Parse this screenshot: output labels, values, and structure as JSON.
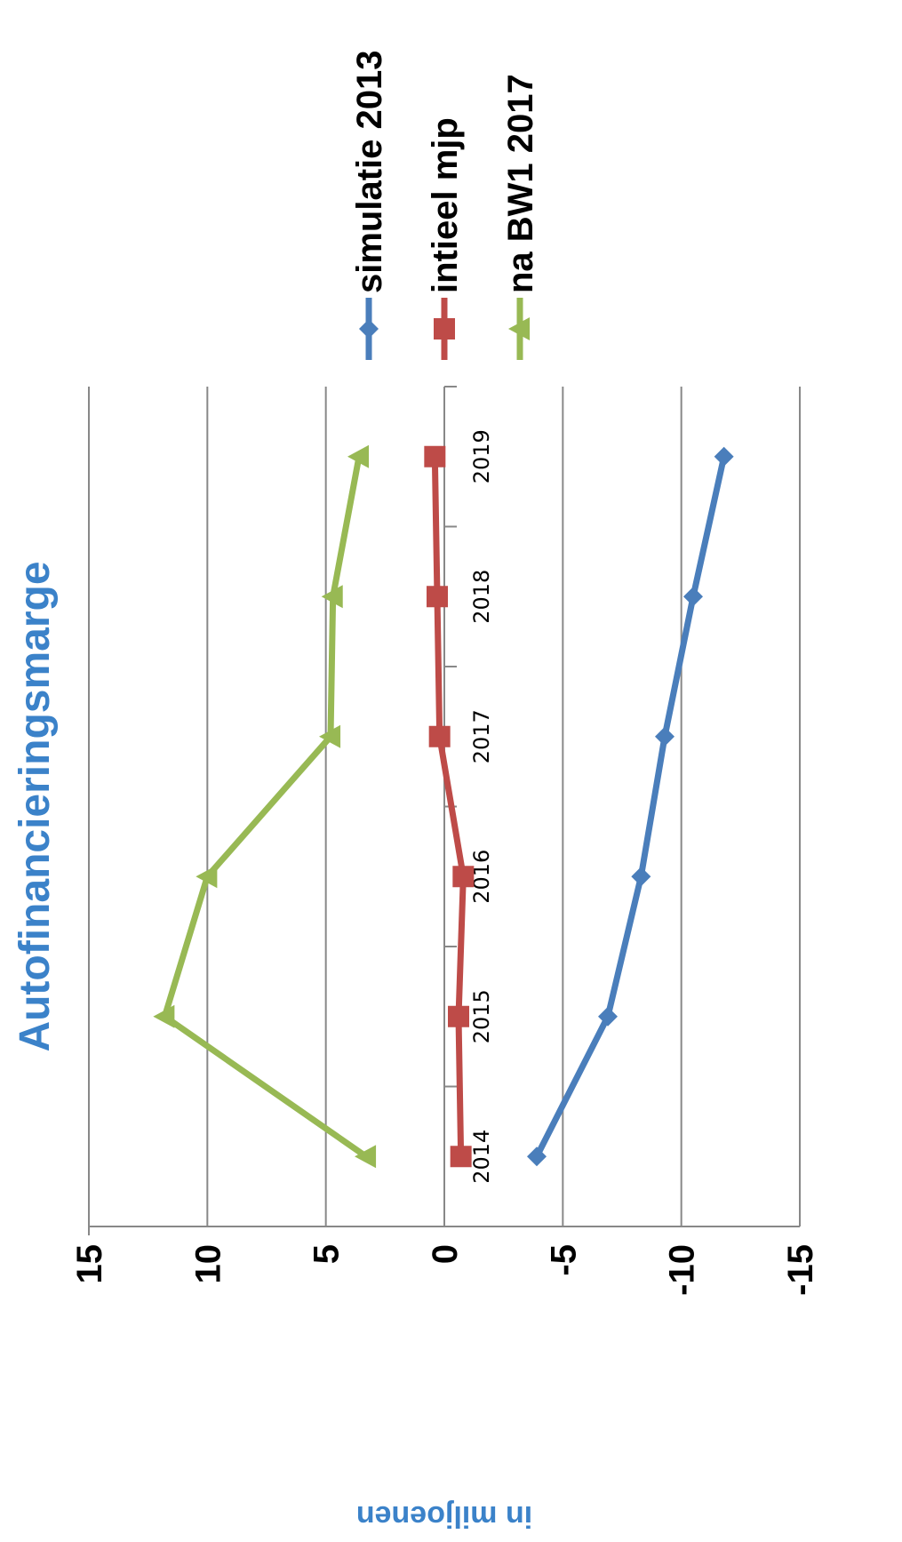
{
  "chart_data": {
    "type": "line",
    "title": "Autofinancieringsmarge",
    "ylabel": "in miljoenen",
    "xlabel": "",
    "categories": [
      "2014",
      "2015",
      "2016",
      "2017",
      "2018",
      "2019"
    ],
    "ylim": [
      -15,
      15
    ],
    "yticks": [
      "15",
      "10",
      "5",
      "0",
      "-5",
      "-10",
      "-15"
    ],
    "grid": true,
    "legend_position": "right",
    "series": [
      {
        "name": "simulatie  2013",
        "color": "#4a7ebb",
        "marker": "diamond",
        "values": [
          -3.9,
          -6.9,
          -8.3,
          -9.3,
          -10.5,
          -11.8
        ]
      },
      {
        "name": "intieel mjp",
        "color": "#be4b48",
        "marker": "square",
        "values": [
          -0.7,
          -0.6,
          -0.8,
          0.2,
          0.3,
          0.4
        ]
      },
      {
        "name": "na BW1 2017",
        "color": "#98b954",
        "marker": "triangle",
        "values": [
          3.3,
          11.8,
          10.0,
          4.8,
          4.7,
          3.6
        ]
      }
    ]
  }
}
